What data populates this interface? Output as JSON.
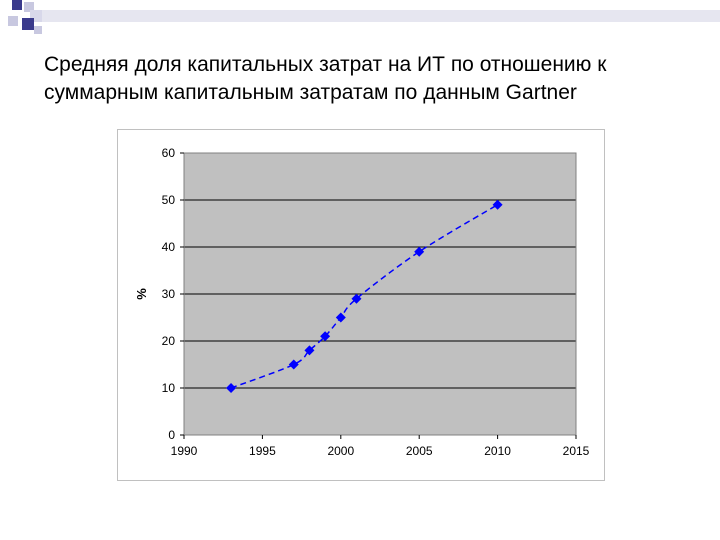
{
  "slide": {
    "title_line1": "Средняя доля капитальных затрат на ИТ по отношению к",
    "title_line2": "суммарным капитальным затратам  по данным Gartner"
  },
  "decoration": {
    "squares_color": "#3a3a8c",
    "squares_light": "#c8c8e0",
    "band_color": "#e0e0ee"
  },
  "chart_data": {
    "type": "line",
    "title": "",
    "xlabel": "",
    "ylabel": "%",
    "xlim": [
      1990,
      2015
    ],
    "ylim": [
      0,
      60
    ],
    "xticks": [
      1990,
      1995,
      2000,
      2005,
      2010,
      2015
    ],
    "yticks": [
      0,
      10,
      20,
      30,
      40,
      50,
      60
    ],
    "grid": true,
    "plot_background": "#c0c0c0",
    "series": [
      {
        "color": "#0000ff",
        "line_style": "dashed",
        "marker": "diamond",
        "x": [
          1993,
          1997,
          1998,
          1999,
          2000,
          2001,
          2005,
          2010
        ],
        "y": [
          10,
          15,
          18,
          21,
          25,
          29,
          39,
          49
        ]
      }
    ]
  }
}
